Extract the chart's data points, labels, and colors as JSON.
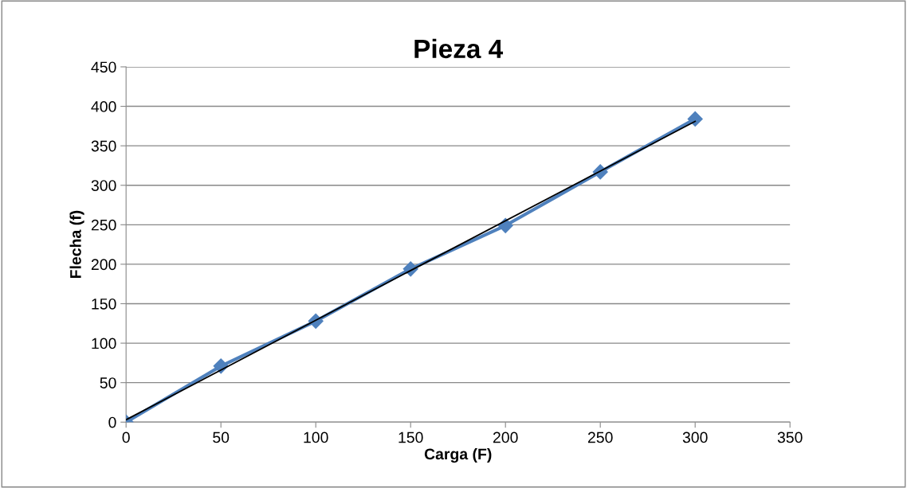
{
  "chart_data": {
    "type": "line",
    "title": "Pieza 4",
    "xlabel": "Carga (F)",
    "ylabel": "Flecha (f)",
    "x": [
      0,
      50,
      100,
      150,
      200,
      250,
      300
    ],
    "series": [
      {
        "color": "#4f81bd",
        "values": [
          0,
          71,
          128,
          194,
          249,
          317,
          384
        ],
        "marker": "diamond",
        "line_style": "solid"
      },
      {
        "type": "line",
        "color": "#000000",
        "x": [
          0,
          300
        ],
        "values": [
          3,
          381
        ],
        "marker": "none",
        "line_style": "solid"
      }
    ],
    "xlim": [
      0,
      350
    ],
    "xticks": [
      0,
      50,
      100,
      150,
      200,
      250,
      300,
      350
    ],
    "ylim": [
      0,
      450
    ],
    "yticks": [
      0,
      50,
      100,
      150,
      200,
      250,
      300,
      350,
      400,
      450
    ],
    "grid": "y",
    "legend": false
  }
}
